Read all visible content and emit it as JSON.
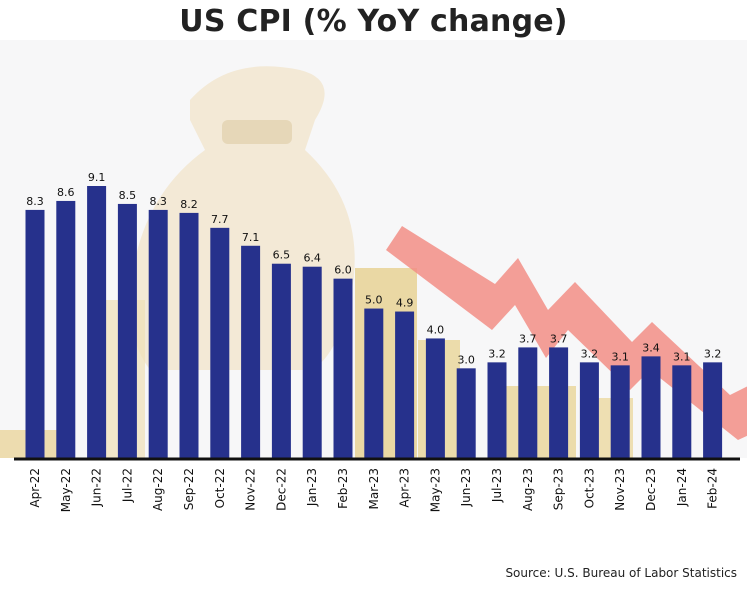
{
  "title": "US CPI (% YoY change)",
  "source": "Source:  U.S. Bureau of Labor Statistics",
  "colors": {
    "bar": "#26318C",
    "axis": "#111111",
    "arrow": "#F28E86"
  },
  "chart_data": {
    "type": "bar",
    "title": "US CPI (% YoY change)",
    "xlabel": "",
    "ylabel": "",
    "ylim": [
      0,
      9.1
    ],
    "grid": false,
    "categories": [
      "Apr-22",
      "May-22",
      "Jun-22",
      "Jul-22",
      "Aug-22",
      "Sep-22",
      "Oct-22",
      "Nov-22",
      "Dec-22",
      "Jan-23",
      "Feb-23",
      "Mar-23",
      "Apr-23",
      "May-23",
      "Jun-23",
      "Jul-23",
      "Aug-23",
      "Sep-23",
      "Oct-23",
      "Nov-23",
      "Dec-23",
      "Jan-24",
      "Feb-24"
    ],
    "values": [
      8.3,
      8.6,
      9.1,
      8.5,
      8.3,
      8.2,
      7.7,
      7.1,
      6.5,
      6.4,
      6.0,
      5.0,
      4.9,
      4.0,
      3.0,
      3.2,
      3.7,
      3.7,
      3.2,
      3.1,
      3.4,
      3.1,
      3.2
    ],
    "data_labels": [
      "8.3",
      "8.6",
      "9.1",
      "8.5",
      "8.3",
      "8.2",
      "7.7",
      "7.1",
      "6.5",
      "6.4",
      "6.0",
      "5.0",
      "4.9",
      "4.0",
      "3.0",
      "3.2",
      "3.7",
      "3.7",
      "3.2",
      "3.1",
      "3.4",
      "3.1",
      "3.2"
    ]
  }
}
